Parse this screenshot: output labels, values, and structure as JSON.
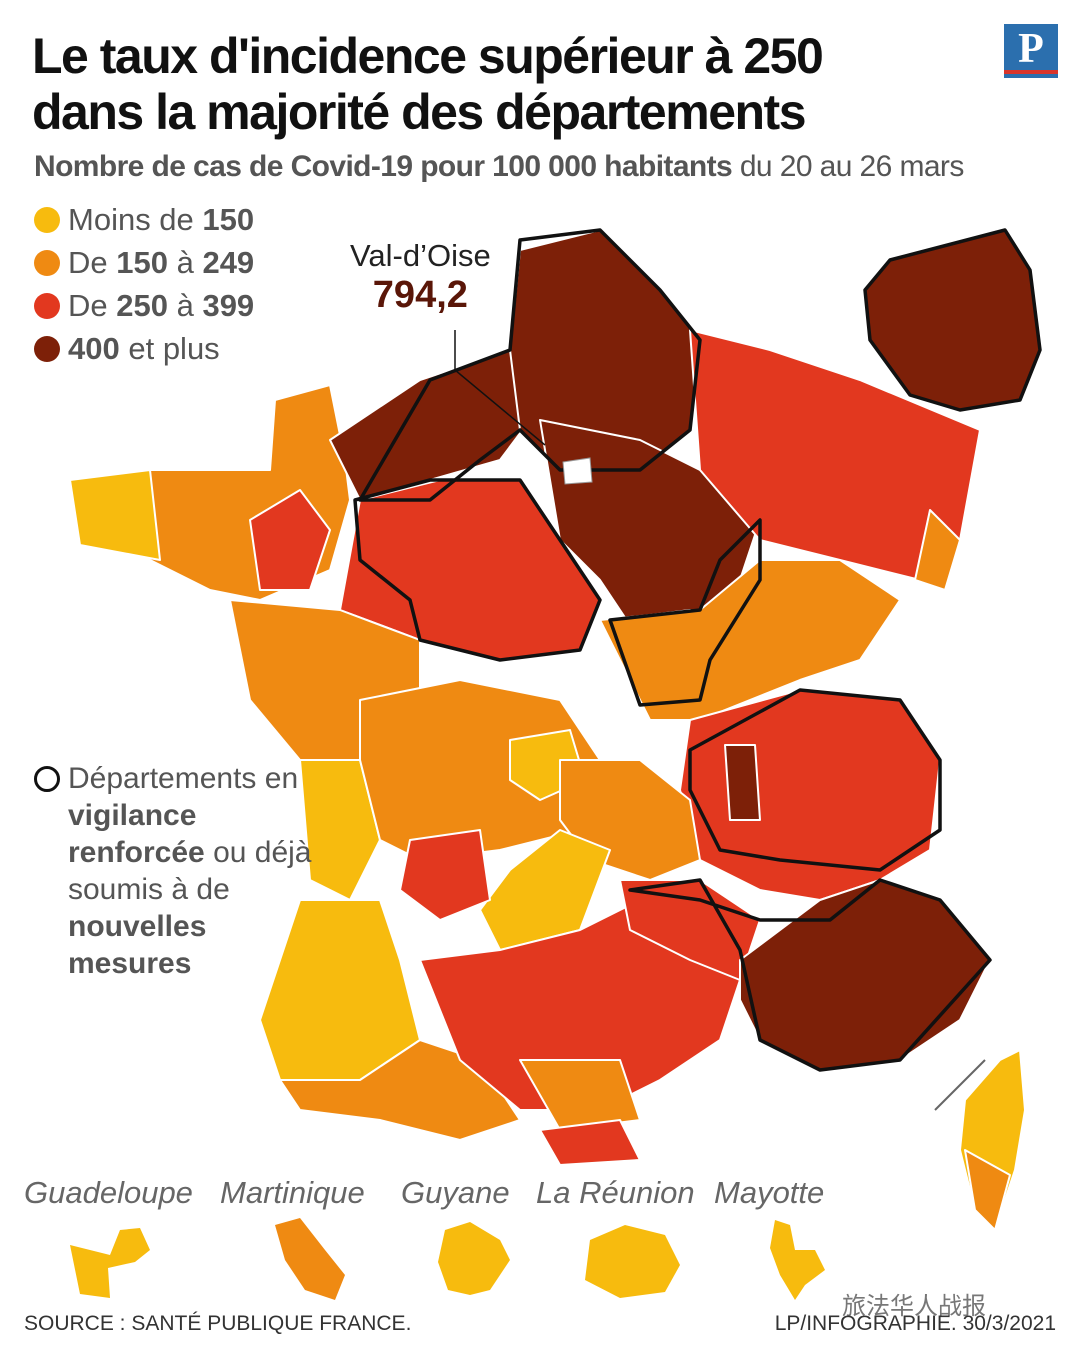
{
  "title": {
    "line1": "Le taux d'incidence supérieur à 250",
    "line2": "dans la majorité des départements"
  },
  "logo": "P",
  "subtitle": {
    "bold": "Nombre de cas de Covid-19 pour 100 000 habitants",
    "rest": " du 20 au 26 mars"
  },
  "legend": [
    {
      "prefix": "Moins de ",
      "b1": "150",
      "mid": "",
      "b2": "",
      "suffix": "",
      "color": "#f7bb0e"
    },
    {
      "prefix": "De ",
      "b1": "150",
      "mid": " à ",
      "b2": "249",
      "suffix": "",
      "color": "#ef8a12"
    },
    {
      "prefix": "De ",
      "b1": "250",
      "mid": " à ",
      "b2": "399",
      "suffix": "",
      "color": "#e2381f"
    },
    {
      "prefix": "",
      "b1": "400",
      "mid": " et plus",
      "b2": "",
      "suffix": "",
      "color": "#7d2008"
    }
  ],
  "vigilance": {
    "t1": "Départements en ",
    "b1": "vigilance renforcée",
    "t2": " ou déjà soumis à de ",
    "b2": "nouvelles mesures"
  },
  "callout": {
    "name": "Val-d’Oise",
    "value": "794,2"
  },
  "overseas": [
    "Guadeloupe",
    "Martinique",
    "Guyane",
    "La Réunion",
    "Mayotte"
  ],
  "source": "SOURCE : SANTÉ PUBLIQUE FRANCE.",
  "credit": "LP/INFOGRAPHIE.  30/3/2021",
  "watermark": "旅法华人战报",
  "colors": {
    "low": "#f7bb0e",
    "mid": "#ef8a12",
    "high": "#e2381f",
    "veryhigh": "#7d2008",
    "vigilance_outline": "#111111"
  }
}
